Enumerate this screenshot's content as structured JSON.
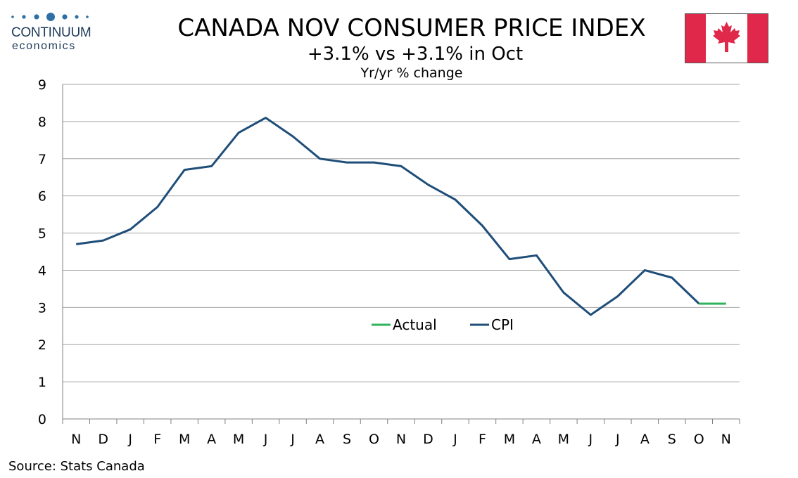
{
  "logo": {
    "name": "CONTINUUM",
    "sub": "economics"
  },
  "header": {
    "title": "CANADA NOV CONSUMER PRICE INDEX",
    "subtitle": "+3.1% vs +3.1% in Oct",
    "units": "Yr/yr % change"
  },
  "footer": {
    "source": "Source: Stats Canada"
  },
  "colors": {
    "cpi": "#1f4e79",
    "actual": "#2db45a",
    "grid": "#a6a6a6",
    "flag_red": "#e0284b"
  },
  "chart_data": {
    "type": "line",
    "title": "CANADA NOV CONSUMER PRICE INDEX",
    "subtitle": "+3.1% vs +3.1% in Oct",
    "ylabel": "Yr/yr % change",
    "xlabel": "",
    "categories": [
      "N",
      "D",
      "J",
      "F",
      "M",
      "A",
      "M",
      "J",
      "J",
      "A",
      "S",
      "O",
      "N",
      "D",
      "J",
      "F",
      "M",
      "A",
      "M",
      "J",
      "J",
      "A",
      "S",
      "O",
      "N"
    ],
    "ylim": [
      0,
      9
    ],
    "yticks": [
      0,
      1,
      2,
      3,
      4,
      5,
      6,
      7,
      8,
      9
    ],
    "grid": true,
    "legend": "center",
    "series": [
      {
        "name": "CPI",
        "color": "#1f4e79",
        "values": [
          4.7,
          4.8,
          5.1,
          5.7,
          6.7,
          6.8,
          7.7,
          8.1,
          7.6,
          7.0,
          6.9,
          6.9,
          6.8,
          6.3,
          5.9,
          5.2,
          4.3,
          4.4,
          3.4,
          2.8,
          3.3,
          4.0,
          3.8,
          3.1,
          null
        ]
      },
      {
        "name": "Actual",
        "color": "#2db45a",
        "values": [
          null,
          null,
          null,
          null,
          null,
          null,
          null,
          null,
          null,
          null,
          null,
          null,
          null,
          null,
          null,
          null,
          null,
          null,
          null,
          null,
          null,
          null,
          null,
          3.1,
          3.1
        ]
      }
    ],
    "legend_order": [
      "Actual",
      "CPI"
    ]
  }
}
